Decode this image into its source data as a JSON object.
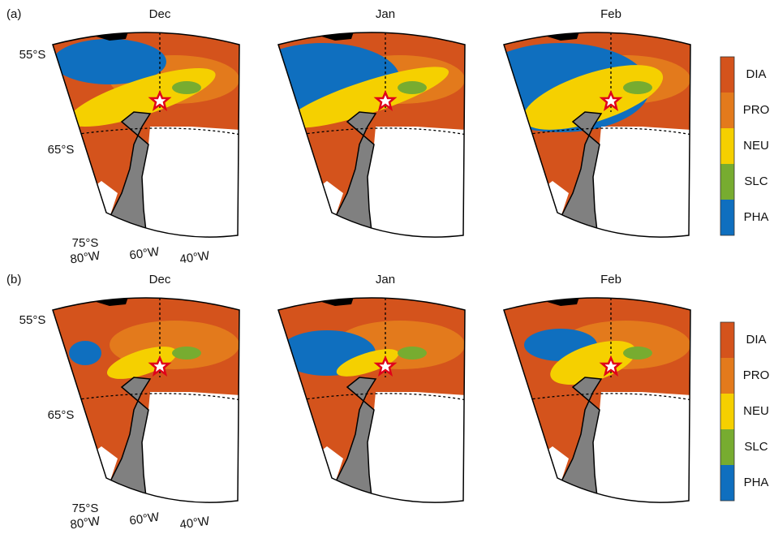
{
  "rows": [
    {
      "label": "(a)"
    },
    {
      "label": "(b)"
    }
  ],
  "months": [
    "Dec",
    "Jan",
    "Feb"
  ],
  "lat_labels": [
    "55°S",
    "65°S",
    "75°S"
  ],
  "lon_labels": [
    "80°W",
    "60°W",
    "40°W"
  ],
  "legend": [
    {
      "name": "DIA",
      "color": "#d4531c"
    },
    {
      "name": "PRO",
      "color": "#e37a1c"
    },
    {
      "name": "NEU",
      "color": "#f5d000"
    },
    {
      "name": "SLC",
      "color": "#77ac30"
    },
    {
      "name": "PHA",
      "color": "#0f6fbf"
    }
  ]
}
